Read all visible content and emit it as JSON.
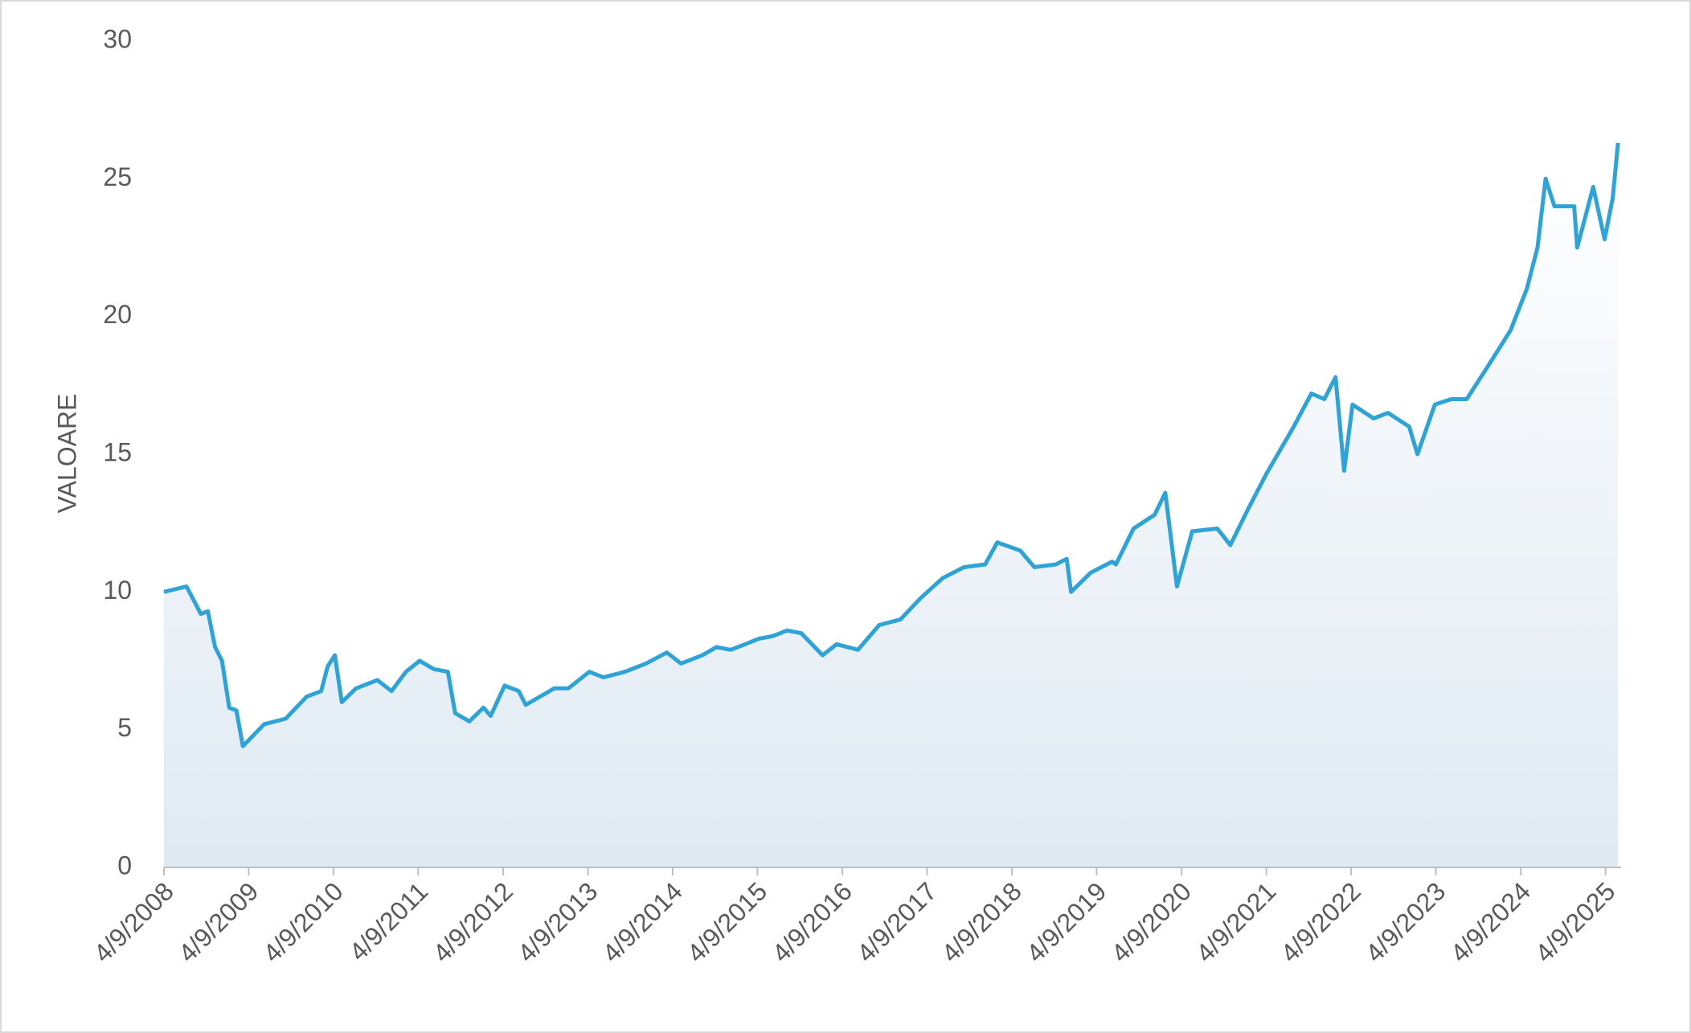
{
  "chart_data": {
    "type": "area",
    "y_label": "VALOARE",
    "color": "#2ea3d8",
    "x": [
      "2008-04-09",
      "2008-07-15",
      "2008-09-15",
      "2008-10-15",
      "2008-11-15",
      "2008-12-15",
      "2009-01-15",
      "2009-02-15",
      "2009-03-15",
      "2009-06-15",
      "2009-09-15",
      "2009-12-15",
      "2010-02-15",
      "2010-03-15",
      "2010-04-15",
      "2010-05-15",
      "2010-07-15",
      "2010-10-15",
      "2010-12-15",
      "2011-02-15",
      "2011-04-15",
      "2011-06-15",
      "2011-08-15",
      "2011-09-15",
      "2011-11-15",
      "2012-01-15",
      "2012-02-15",
      "2012-04-15",
      "2012-06-15",
      "2012-07-15",
      "2012-09-15",
      "2012-11-15",
      "2013-01-15",
      "2013-04-15",
      "2013-06-15",
      "2013-09-15",
      "2013-12-15",
      "2014-03-15",
      "2014-05-15",
      "2014-08-15",
      "2014-10-15",
      "2014-12-15",
      "2015-02-15",
      "2015-04-15",
      "2015-06-15",
      "2015-08-15",
      "2015-10-15",
      "2016-01-15",
      "2016-03-15",
      "2016-06-15",
      "2016-09-15",
      "2016-12-15",
      "2017-03-15",
      "2017-06-15",
      "2017-09-15",
      "2017-12-15",
      "2018-02-05",
      "2018-05-15",
      "2018-07-15",
      "2018-10-15",
      "2018-12-01",
      "2018-12-20",
      "2019-03-15",
      "2019-06-15",
      "2019-07-01",
      "2019-09-15",
      "2019-12-15",
      "2020-01-30",
      "2020-03-20",
      "2020-05-25",
      "2020-09-10",
      "2020-11-05",
      "2021-01-20",
      "2021-04-10",
      "2021-08-05",
      "2021-10-20",
      "2021-12-15",
      "2022-02-01",
      "2022-03-10",
      "2022-04-15",
      "2022-07-15",
      "2022-09-15",
      "2022-12-15",
      "2023-01-20",
      "2023-04-05",
      "2023-06-15",
      "2023-08-20",
      "2023-11-20",
      "2024-02-25",
      "2024-05-05",
      "2024-06-20",
      "2024-07-25",
      "2024-09-01",
      "2024-11-25",
      "2024-12-08",
      "2025-02-15",
      "2025-04-05",
      "2025-05-10",
      "2025-06-02"
    ],
    "values": [
      10.0,
      10.2,
      9.2,
      9.3,
      8.0,
      7.5,
      5.8,
      5.7,
      4.4,
      5.2,
      5.4,
      6.2,
      6.4,
      7.3,
      7.7,
      6.0,
      6.5,
      6.8,
      6.4,
      7.1,
      7.5,
      7.2,
      7.1,
      5.6,
      5.3,
      5.8,
      5.5,
      6.6,
      6.4,
      5.9,
      6.2,
      6.5,
      6.5,
      7.1,
      6.9,
      7.1,
      7.4,
      7.8,
      7.4,
      7.7,
      8.0,
      7.9,
      8.1,
      8.3,
      8.4,
      8.6,
      8.5,
      7.7,
      8.1,
      7.9,
      8.8,
      9.0,
      9.8,
      10.5,
      10.9,
      11.0,
      11.8,
      11.5,
      10.9,
      11.0,
      11.2,
      10.0,
      10.7,
      11.1,
      11.0,
      12.3,
      12.8,
      13.6,
      10.2,
      12.2,
      12.3,
      11.7,
      13.0,
      14.3,
      16.0,
      17.2,
      17.0,
      17.8,
      14.4,
      16.8,
      16.3,
      16.5,
      16.0,
      15.0,
      16.8,
      17.0,
      17.0,
      18.2,
      19.5,
      21.0,
      22.5,
      25.0,
      24.0,
      24.0,
      22.5,
      24.7,
      22.8,
      24.3,
      26.3
    ],
    "xlim": [
      "2008-04-09",
      "2025-06-15"
    ],
    "xticks": [
      {
        "value": "2008-04-09",
        "label": "4/9/2008"
      },
      {
        "value": "2009-04-09",
        "label": "4/9/2009"
      },
      {
        "value": "2010-04-09",
        "label": "4/9/2010"
      },
      {
        "value": "2011-04-09",
        "label": "4/9/2011"
      },
      {
        "value": "2012-04-09",
        "label": "4/9/2012"
      },
      {
        "value": "2013-04-09",
        "label": "4/9/2013"
      },
      {
        "value": "2014-04-09",
        "label": "4/9/2014"
      },
      {
        "value": "2015-04-09",
        "label": "4/9/2015"
      },
      {
        "value": "2016-04-09",
        "label": "4/9/2016"
      },
      {
        "value": "2017-04-09",
        "label": "4/9/2017"
      },
      {
        "value": "2018-04-09",
        "label": "4/9/2018"
      },
      {
        "value": "2019-04-09",
        "label": "4/9/2019"
      },
      {
        "value": "2020-04-09",
        "label": "4/9/2020"
      },
      {
        "value": "2021-04-09",
        "label": "4/9/2021"
      },
      {
        "value": "2022-04-09",
        "label": "4/9/2022"
      },
      {
        "value": "2023-04-09",
        "label": "4/9/2023"
      },
      {
        "value": "2024-04-09",
        "label": "4/9/2024"
      },
      {
        "value": "2025-04-09",
        "label": "4/9/2025"
      }
    ],
    "ylim": [
      0,
      30
    ],
    "yticks": [
      0,
      5,
      10,
      15,
      20,
      25,
      30
    ],
    "grid": false
  }
}
